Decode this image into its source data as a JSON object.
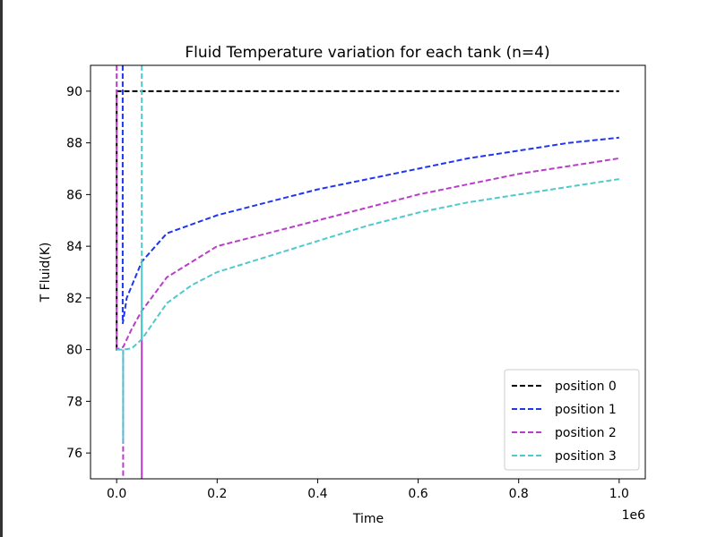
{
  "chart_data": {
    "type": "line",
    "title": "Fluid Temperature variation for each tank (n=4)",
    "xlabel": "Time",
    "ylabel": "T Fluid(K)",
    "x_offset_label": "1e6",
    "xlim": [
      -0.052,
      1.052
    ],
    "ylim": [
      75,
      91
    ],
    "xticks": [
      0,
      0.2,
      0.4,
      0.6,
      0.8,
      1.0
    ],
    "xtick_labels": [
      "0.0",
      "0.2",
      "0.4",
      "0.6",
      "0.8",
      "1.0"
    ],
    "yticks": [
      76,
      78,
      80,
      82,
      84,
      86,
      88,
      90
    ],
    "ytick_labels": [
      "76",
      "78",
      "80",
      "82",
      "84",
      "86",
      "88",
      "90"
    ],
    "legend_position": "lower-right",
    "grid": false,
    "series": [
      {
        "name": "position 0",
        "color": "#000000",
        "dash": true,
        "x": [
          0,
          0,
          1.0
        ],
        "y": [
          80,
          90,
          90
        ]
      },
      {
        "name": "position 1",
        "color": "#1f35ee",
        "dash": true,
        "x": [
          0.012,
          0.012,
          0.02,
          0.05,
          0.1,
          0.2,
          0.3,
          0.4,
          0.5,
          0.6,
          0.7,
          0.8,
          0.9,
          1.0
        ],
        "y": [
          91,
          81,
          82,
          83.4,
          84.5,
          85.2,
          85.7,
          86.2,
          86.6,
          87.0,
          87.4,
          87.7,
          88.0,
          88.2
        ]
      },
      {
        "name": "position 2",
        "color": "#bb3ccc",
        "dash": true,
        "x": [
          0.0,
          0.0,
          0.013,
          0.03,
          0.05,
          0.1,
          0.2,
          0.3,
          0.4,
          0.5,
          0.6,
          0.7,
          0.8,
          0.9,
          1.0
        ],
        "y": [
          91,
          80,
          80.1,
          80.8,
          81.5,
          82.8,
          84.0,
          84.5,
          85.0,
          85.5,
          86.0,
          86.4,
          86.8,
          87.1,
          87.4
        ],
        "extra": [
          {
            "x": [
              0.013,
              0.013
            ],
            "y": [
              80,
              75
            ],
            "dash": true
          },
          {
            "x": [
              0.05,
              0.05
            ],
            "y": [
              81.5,
              75
            ],
            "dash": false
          }
        ]
      },
      {
        "name": "position 3",
        "color": "#4ec9cc",
        "dash": true,
        "x": [
          0.0,
          0.013,
          0.03,
          0.05,
          0.1,
          0.15,
          0.2,
          0.3,
          0.4,
          0.5,
          0.6,
          0.7,
          0.8,
          0.9,
          1.0
        ],
        "y": [
          80,
          80,
          80.05,
          80.4,
          81.8,
          82.5,
          83.0,
          83.6,
          84.2,
          84.8,
          85.3,
          85.7,
          86.0,
          86.3,
          86.6
        ],
        "extra": [
          {
            "x": [
              0.05,
              0.05
            ],
            "y": [
              91,
              83.4
            ],
            "dash": true
          },
          {
            "x": [
              0.05,
              0.05
            ],
            "y": [
              83.4,
              80.4
            ],
            "dash": false
          },
          {
            "x": [
              0.013,
              0.013
            ],
            "y": [
              80,
              76.4
            ],
            "dash": false
          }
        ]
      }
    ]
  }
}
